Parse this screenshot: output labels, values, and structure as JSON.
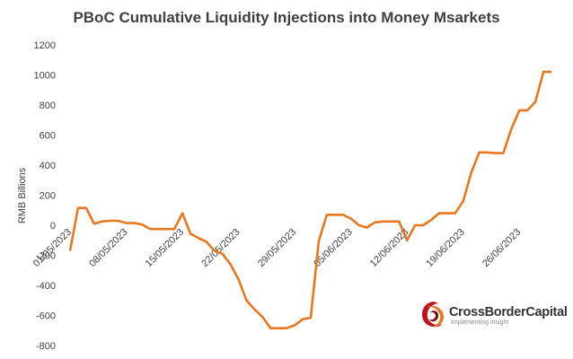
{
  "chart_data": {
    "type": "line",
    "title": "PBoC Cumulative Liquidity Injections into Money Msarkets",
    "ylabel": "RMB Billions",
    "xlabel": "",
    "ylim": [
      -800,
      1200
    ],
    "y_ticks": [
      "1200",
      "1000",
      "800",
      "600",
      "400",
      "200",
      "0",
      "-200",
      "-400",
      "-600",
      "-800"
    ],
    "x_ticks": [
      "01/05/2023",
      "08/05/2023",
      "15/05/2023",
      "22/05/2023",
      "29/05/2023",
      "05/06/2023",
      "12/06/2023",
      "19/06/2023",
      "26/06/2023"
    ],
    "grid": false,
    "series": [
      {
        "color": "#e87722",
        "x": [
          "01/05/2023",
          "02/05/2023",
          "03/05/2023",
          "04/05/2023",
          "05/05/2023",
          "06/05/2023",
          "07/05/2023",
          "08/05/2023",
          "09/05/2023",
          "10/05/2023",
          "11/05/2023",
          "12/05/2023",
          "13/05/2023",
          "14/05/2023",
          "15/05/2023",
          "16/05/2023",
          "17/05/2023",
          "18/05/2023",
          "19/05/2023",
          "20/05/2023",
          "21/05/2023",
          "22/05/2023",
          "23/05/2023",
          "24/05/2023",
          "25/05/2023",
          "26/05/2023",
          "27/05/2023",
          "28/05/2023",
          "29/05/2023",
          "30/05/2023",
          "31/05/2023",
          "01/06/2023",
          "02/06/2023",
          "03/06/2023",
          "04/06/2023",
          "05/06/2023",
          "06/06/2023",
          "07/06/2023",
          "08/06/2023",
          "09/06/2023",
          "10/06/2023",
          "11/06/2023",
          "12/06/2023",
          "13/06/2023",
          "14/06/2023",
          "15/06/2023",
          "16/06/2023",
          "17/06/2023",
          "18/06/2023",
          "19/06/2023",
          "20/06/2023",
          "21/06/2023",
          "22/06/2023",
          "23/06/2023",
          "24/06/2023",
          "25/06/2023",
          "26/06/2023",
          "27/06/2023",
          "28/06/2023",
          "29/06/2023",
          "30/06/2023"
        ],
        "values": [
          -170,
          115,
          115,
          10,
          25,
          30,
          30,
          15,
          15,
          5,
          -25,
          -25,
          -25,
          -25,
          80,
          -55,
          -85,
          -110,
          -170,
          -190,
          -260,
          -360,
          -500,
          -560,
          -610,
          -685,
          -685,
          -685,
          -665,
          -625,
          -615,
          -105,
          70,
          70,
          70,
          45,
          0,
          -15,
          20,
          25,
          25,
          25,
          -100,
          0,
          0,
          35,
          80,
          80,
          80,
          160,
          350,
          485,
          485,
          480,
          480,
          640,
          765,
          765,
          820,
          1020,
          1020
        ]
      }
    ]
  },
  "logo": {
    "name": "CrossBorderCapital",
    "tagline": "Implementing insight"
  }
}
